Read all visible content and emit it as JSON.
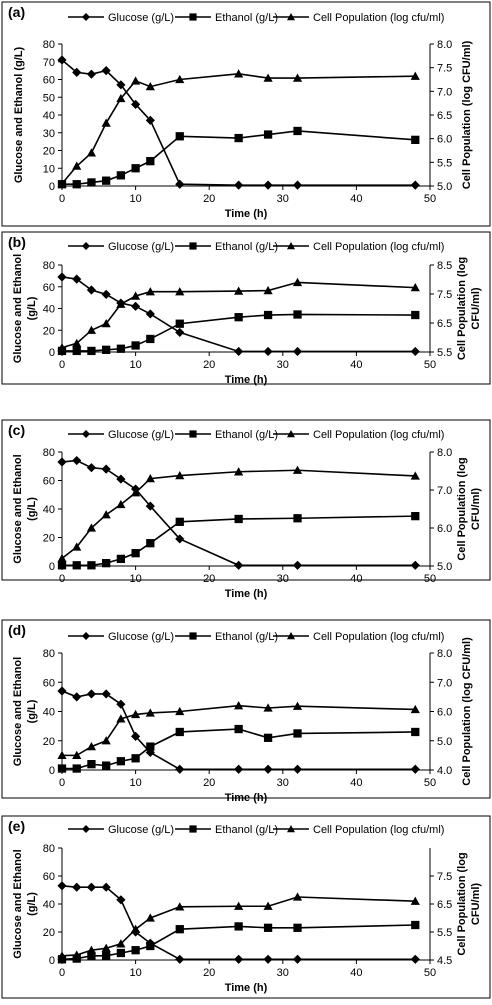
{
  "chart_data": [
    {
      "type": "line",
      "panel_label": "(a)",
      "xlabel": "Time (h)",
      "ylabel": "Glucose and Ethanol (g/L)",
      "y2label": "Cell Population (log CFU/ml)",
      "xlim": [
        0,
        50
      ],
      "xticks": [
        0,
        10,
        20,
        30,
        40,
        50
      ],
      "ylim": [
        0,
        80
      ],
      "yticks": [
        0,
        10,
        20,
        30,
        40,
        50,
        60,
        70,
        80
      ],
      "y2lim": [
        5.0,
        8.0
      ],
      "y2ticks": [
        "5.0",
        "5.5",
        "6.0",
        "6.5",
        "7.0",
        "7.5",
        "8.0"
      ],
      "legend_position": "top",
      "series": [
        {
          "name": "Glucose (g/L)",
          "marker": "diamond",
          "axis": "left",
          "x": [
            0,
            2,
            4,
            6,
            8,
            10,
            12,
            16,
            24,
            28,
            32,
            48
          ],
          "y": [
            71,
            64,
            63,
            65,
            57,
            46,
            37,
            1,
            0.5,
            0.5,
            0.5,
            0.5
          ]
        },
        {
          "name": "Ethanol (g/L)",
          "marker": "square",
          "axis": "left",
          "x": [
            0,
            2,
            4,
            6,
            8,
            10,
            12,
            16,
            24,
            28,
            32,
            48
          ],
          "y": [
            1,
            1,
            2,
            3,
            6,
            10,
            14,
            28,
            27,
            29,
            31,
            26
          ]
        },
        {
          "name": "Cell Population (log cfu/ml)",
          "marker": "triangle",
          "axis": "right",
          "x": [
            0,
            2,
            4,
            6,
            8,
            10,
            12,
            16,
            24,
            28,
            32,
            48
          ],
          "y": [
            5.05,
            5.42,
            5.7,
            6.33,
            6.85,
            7.22,
            7.1,
            7.25,
            7.37,
            7.28,
            7.28,
            7.32
          ]
        }
      ]
    },
    {
      "type": "line",
      "panel_label": "(b)",
      "xlabel": "Time (h)",
      "ylabel": "Glucose and Ethanol (g/L)",
      "y2label": "Cell Population (log CFU/ml)",
      "xlim": [
        0,
        50
      ],
      "xticks": [
        0,
        10,
        20,
        30,
        40,
        50
      ],
      "ylim": [
        0,
        80
      ],
      "yticks": [
        0,
        20,
        40,
        60,
        80
      ],
      "y2lim": [
        5.5,
        8.5
      ],
      "y2ticks": [
        "5.5",
        "6.5",
        "7.5",
        "8.5"
      ],
      "legend_position": "top",
      "series": [
        {
          "name": "Glucose (g/L)",
          "marker": "diamond",
          "axis": "left",
          "x": [
            0,
            2,
            4,
            6,
            8,
            10,
            12,
            16,
            24,
            28,
            32,
            48
          ],
          "y": [
            69,
            67,
            57,
            53,
            45,
            42,
            35,
            18,
            0.5,
            0.5,
            0.5,
            0.5
          ]
        },
        {
          "name": "Ethanol (g/L)",
          "marker": "square",
          "axis": "left",
          "x": [
            0,
            2,
            4,
            6,
            8,
            10,
            12,
            16,
            24,
            28,
            32,
            48
          ],
          "y": [
            1,
            1,
            1,
            2,
            3,
            6,
            12,
            26,
            32,
            34,
            34.5,
            34
          ]
        },
        {
          "name": "Cell Population (log cfu/ml)",
          "marker": "triangle",
          "axis": "right",
          "x": [
            0,
            2,
            4,
            6,
            8,
            10,
            12,
            16,
            24,
            28,
            32,
            48
          ],
          "y": [
            5.65,
            5.8,
            6.25,
            6.48,
            7.15,
            7.43,
            7.58,
            7.58,
            7.6,
            7.62,
            7.9,
            7.72
          ]
        }
      ]
    },
    {
      "type": "line",
      "panel_label": "(c)",
      "xlabel": "Time (h)",
      "ylabel": "Glucose and Ethanol (g/L)",
      "y2label": "Cell Population (log CFU/ml)",
      "xlim": [
        0,
        50
      ],
      "xticks": [
        0,
        10,
        20,
        30,
        40,
        50
      ],
      "ylim": [
        0,
        80
      ],
      "yticks": [
        0,
        20,
        40,
        60,
        80
      ],
      "y2lim": [
        5.0,
        8.0
      ],
      "y2ticks": [
        "5.0",
        "6.0",
        "7.0",
        "8.0"
      ],
      "legend_position": "top",
      "series": [
        {
          "name": "Glucose (g/L)",
          "marker": "diamond",
          "axis": "left",
          "x": [
            0,
            2,
            4,
            6,
            8,
            10,
            12,
            16,
            24,
            32,
            48
          ],
          "y": [
            73,
            74,
            69,
            68,
            61,
            54,
            42,
            19,
            0.5,
            0.5,
            0.5
          ]
        },
        {
          "name": "Ethanol (g/L)",
          "marker": "square",
          "axis": "left",
          "x": [
            0,
            2,
            4,
            6,
            8,
            10,
            12,
            16,
            24,
            32,
            48
          ],
          "y": [
            0.5,
            0.5,
            0.5,
            2,
            5,
            9,
            16,
            31,
            33,
            33.5,
            35
          ]
        },
        {
          "name": "Cell Population (log cfu/ml)",
          "marker": "triangle",
          "axis": "right",
          "x": [
            0,
            2,
            4,
            6,
            8,
            10,
            12,
            16,
            24,
            32,
            48
          ],
          "y": [
            5.2,
            5.5,
            6.0,
            6.35,
            6.62,
            6.93,
            7.3,
            7.38,
            7.48,
            7.52,
            7.37
          ]
        }
      ]
    },
    {
      "type": "line",
      "panel_label": "(d)",
      "xlabel": "Time (h)",
      "ylabel": "Glucose and Ethanol (g/L)",
      "y2label": "Cell Population (log CFU/ml)",
      "xlim": [
        0,
        50
      ],
      "xticks": [
        0,
        10,
        20,
        30,
        40,
        50
      ],
      "ylim": [
        0,
        80
      ],
      "yticks": [
        0,
        20,
        40,
        60,
        80
      ],
      "y2lim": [
        4.0,
        8.0
      ],
      "y2ticks": [
        "4.0",
        "5.0",
        "6.0",
        "7.0",
        "8.0"
      ],
      "legend_position": "top",
      "series": [
        {
          "name": "Glucose (g/L)",
          "marker": "diamond",
          "axis": "left",
          "x": [
            0,
            2,
            4,
            6,
            8,
            10,
            12,
            16,
            24,
            28,
            32,
            48
          ],
          "y": [
            54,
            50,
            52,
            52,
            45,
            23,
            12,
            0.5,
            0.5,
            0.5,
            0.5,
            0.5
          ]
        },
        {
          "name": "Ethanol (g/L)",
          "marker": "square",
          "axis": "left",
          "x": [
            0,
            2,
            4,
            6,
            8,
            10,
            12,
            16,
            24,
            28,
            32,
            48
          ],
          "y": [
            1,
            1,
            4,
            3,
            6,
            8,
            16,
            26,
            28,
            22,
            25,
            26
          ]
        },
        {
          "name": "Cell Population (log cfu/ml)",
          "marker": "triangle",
          "axis": "right",
          "x": [
            0,
            2,
            4,
            6,
            8,
            10,
            12,
            16,
            24,
            28,
            32,
            48
          ],
          "y": [
            4.5,
            4.5,
            4.8,
            5.0,
            5.75,
            5.9,
            5.95,
            6.0,
            6.2,
            6.12,
            6.18,
            6.07
          ]
        }
      ]
    },
    {
      "type": "line",
      "panel_label": "(e)",
      "xlabel": "Time (h)",
      "ylabel": "Glucose and Ethanol (g/L)",
      "y2label": "Cell Population (log CFU/ml)",
      "xlim": [
        0,
        50
      ],
      "xticks": [
        0,
        10,
        20,
        30,
        40,
        50
      ],
      "ylim": [
        0,
        80
      ],
      "yticks": [
        0,
        20,
        40,
        60,
        80
      ],
      "y2lim": [
        4.5,
        8.5
      ],
      "y2ticks": [
        "4.5",
        "5.5",
        "6.5",
        "7.5"
      ],
      "legend_position": "top",
      "series": [
        {
          "name": "Glucose (g/L)",
          "marker": "diamond",
          "axis": "left",
          "x": [
            0,
            2,
            4,
            6,
            8,
            10,
            12,
            16,
            24,
            28,
            32,
            48
          ],
          "y": [
            53,
            52,
            52,
            52,
            43,
            20,
            12,
            0.5,
            0.5,
            0.5,
            0.5,
            0.5
          ]
        },
        {
          "name": "Ethanol (g/L)",
          "marker": "square",
          "axis": "left",
          "x": [
            0,
            2,
            4,
            6,
            8,
            10,
            12,
            16,
            24,
            28,
            32,
            48
          ],
          "y": [
            0.5,
            1,
            3,
            3,
            5,
            7,
            10,
            22,
            24,
            23,
            23,
            25
          ]
        },
        {
          "name": "Cell Population (log cfu/ml)",
          "marker": "triangle",
          "axis": "right",
          "x": [
            0,
            2,
            4,
            6,
            8,
            10,
            12,
            16,
            24,
            28,
            32,
            48
          ],
          "y": [
            4.65,
            4.68,
            4.85,
            4.92,
            5.08,
            5.6,
            6.0,
            6.4,
            6.42,
            6.42,
            6.75,
            6.6
          ]
        }
      ]
    }
  ]
}
